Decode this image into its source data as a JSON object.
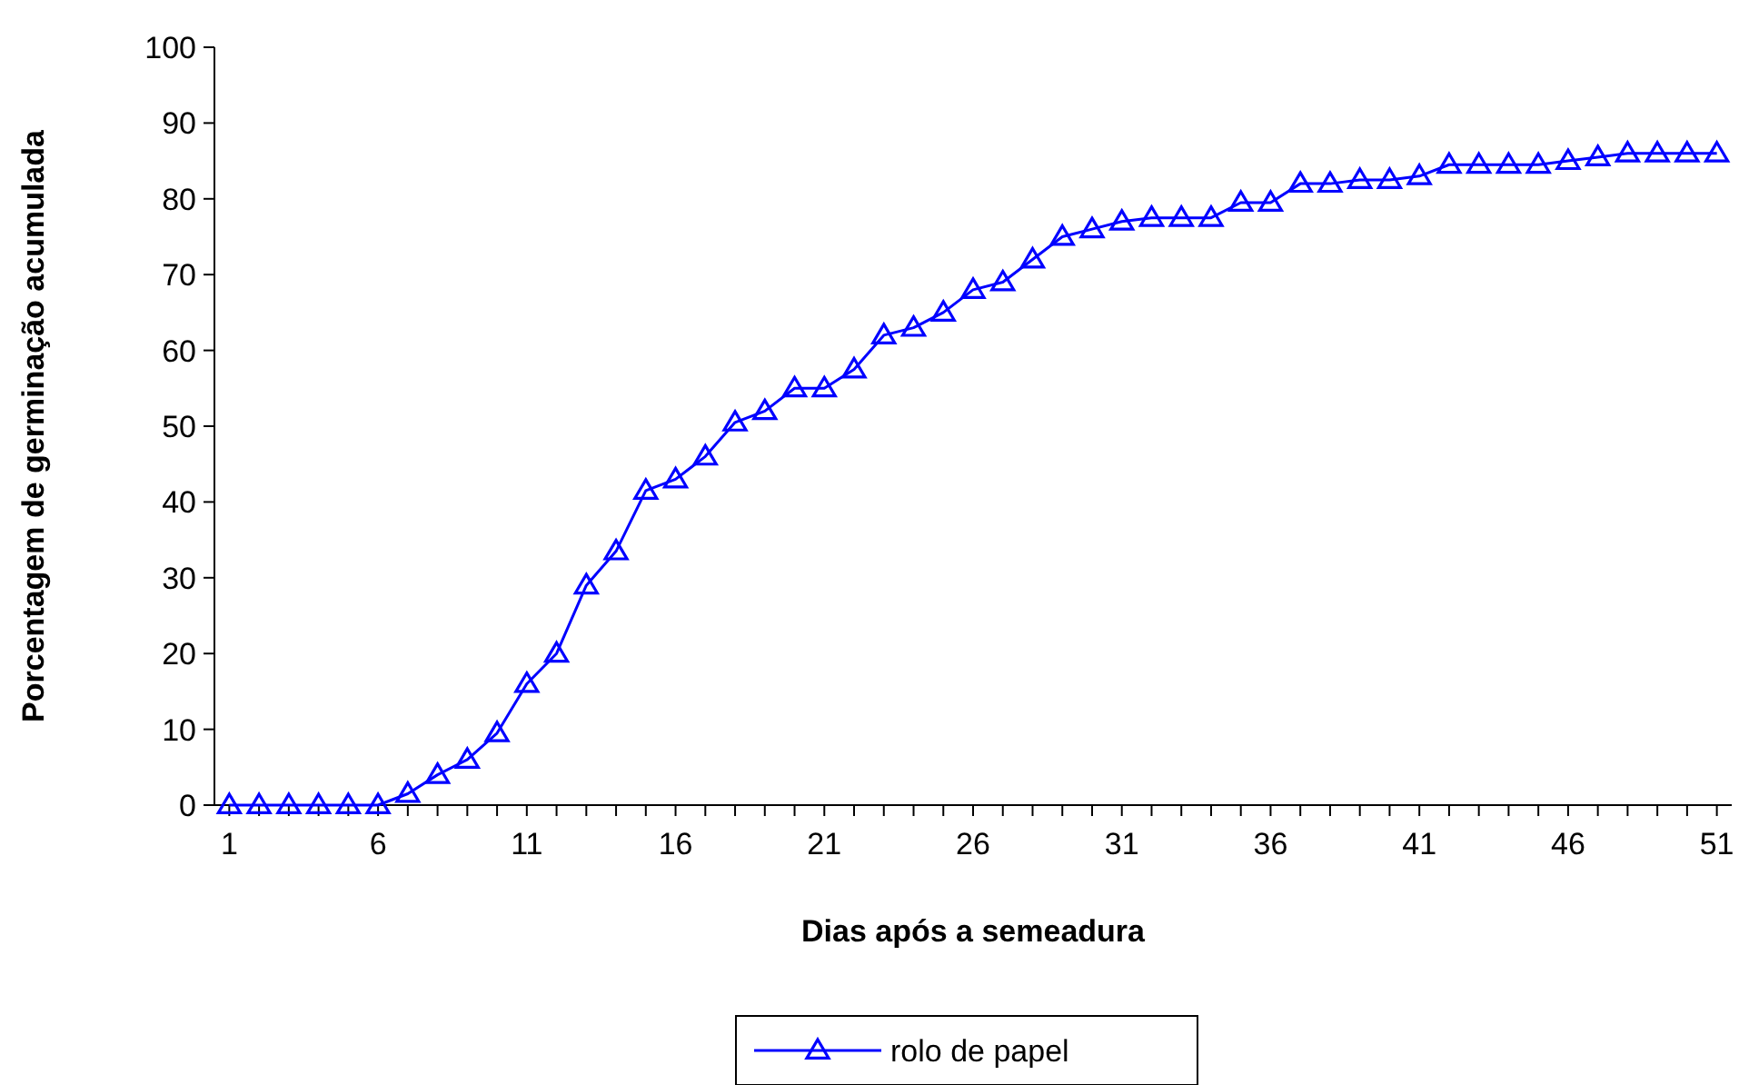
{
  "chart_data": {
    "type": "line",
    "xlabel": "Dias após a semeadura",
    "ylabel": "Porcentagem de germinação acumulada",
    "x": [
      1,
      2,
      3,
      4,
      5,
      6,
      7,
      8,
      9,
      10,
      11,
      12,
      13,
      14,
      15,
      16,
      17,
      18,
      19,
      20,
      21,
      22,
      23,
      24,
      25,
      26,
      27,
      28,
      29,
      30,
      31,
      32,
      33,
      34,
      35,
      36,
      37,
      38,
      39,
      40,
      41,
      42,
      43,
      44,
      45,
      46,
      47,
      48,
      49,
      50,
      51
    ],
    "xlim": [
      0.5,
      51.5
    ],
    "xticks": [
      1,
      6,
      11,
      16,
      21,
      26,
      31,
      36,
      41,
      46,
      51
    ],
    "series": [
      {
        "name": "rolo de papel",
        "color": "#0000ff",
        "values": [
          0,
          0,
          0,
          0,
          0,
          0,
          1.5,
          4,
          6,
          9.5,
          16,
          20,
          29,
          33.5,
          41.5,
          43,
          46,
          50.5,
          52,
          55,
          55,
          57.5,
          62,
          63,
          65,
          68,
          69,
          72,
          75,
          76,
          77,
          77.5,
          77.5,
          77.5,
          79.5,
          79.5,
          82,
          82,
          82.5,
          82.5,
          83,
          84.5,
          84.5,
          84.5,
          84.5,
          85,
          85.5,
          86,
          86,
          86,
          86
        ]
      }
    ],
    "ylim": [
      0,
      100
    ],
    "yticks": [
      0,
      10,
      20,
      30,
      40,
      50,
      60,
      70,
      80,
      90,
      100
    ],
    "grid": false,
    "legend": "bottom",
    "marker": "triangle",
    "line_style": "solid"
  }
}
